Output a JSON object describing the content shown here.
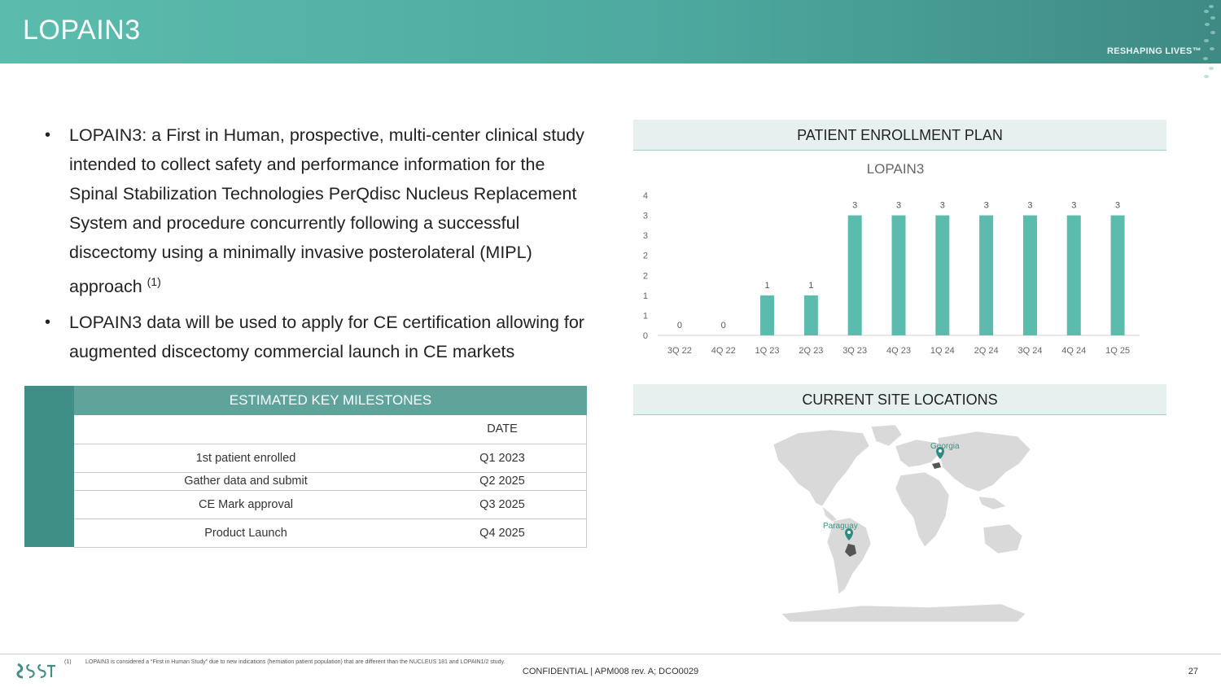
{
  "header": {
    "title": "LOPAIN3",
    "tagline": "RESHAPING LIVES™"
  },
  "bullets": [
    {
      "text": "LOPAIN3: a First in Human, prospective, multi-center clinical study intended to collect safety and performance information for the Spinal Stabilization Technologies PerQdisc Nucleus Replacement System and procedure concurrently following a successful discectomy using a minimally invasive posterolateral (MIPL) approach",
      "sup": "(1)"
    },
    {
      "text": "LOPAIN3 data will be used to apply for CE certification allowing for augmented discectomy commercial launch in CE markets",
      "sup": ""
    }
  ],
  "enrollment": {
    "heading": "PATIENT ENROLLMENT PLAN",
    "chart_title": "LOPAIN3"
  },
  "chart_data": {
    "type": "bar",
    "title": "LOPAIN3",
    "categories": [
      "3Q 22",
      "4Q 22",
      "1Q 23",
      "2Q 23",
      "3Q 23",
      "4Q 23",
      "1Q 24",
      "2Q 24",
      "3Q 24",
      "4Q 24",
      "1Q 25"
    ],
    "values": [
      0,
      0,
      1,
      1,
      3,
      3,
      3,
      3,
      3,
      3,
      3
    ],
    "y_tick_labels": [
      "0",
      "1",
      "1",
      "2",
      "2",
      "3",
      "3",
      "4"
    ],
    "ylim": [
      0,
      3.5
    ],
    "xlabel": "",
    "ylabel": "",
    "grid": false,
    "bar_color": "#5bbcad"
  },
  "milestones": {
    "heading": "ESTIMATED KEY MILESTONES",
    "date_header": "DATE",
    "rows": [
      {
        "label": "1st patient enrolled",
        "date": "Q1 2023"
      },
      {
        "label": "Gather data and submit",
        "date": "Q2 2025"
      },
      {
        "label": "CE Mark approval",
        "date": "Q3 2025"
      },
      {
        "label": "Product Launch",
        "date": "Q4 2025"
      }
    ]
  },
  "sites": {
    "heading": "CURRENT SITE LOCATIONS",
    "locations": [
      "Georgia",
      "Paraguay"
    ]
  },
  "footer": {
    "footnote_number": "(1)",
    "footnote": "LOPAIN3 is considered a “First in Human Study” due to new indications (herniation patient population) that are different than the NUCLEUS 181 and LOPAIN1/2 study.",
    "confidential": "CONFIDENTIAL | APM008 rev. A; DCO0029",
    "page_number": "27"
  },
  "colors": {
    "teal": "#5bbcad",
    "dark_teal": "#3f8f86",
    "header_text": "#ffffff"
  }
}
